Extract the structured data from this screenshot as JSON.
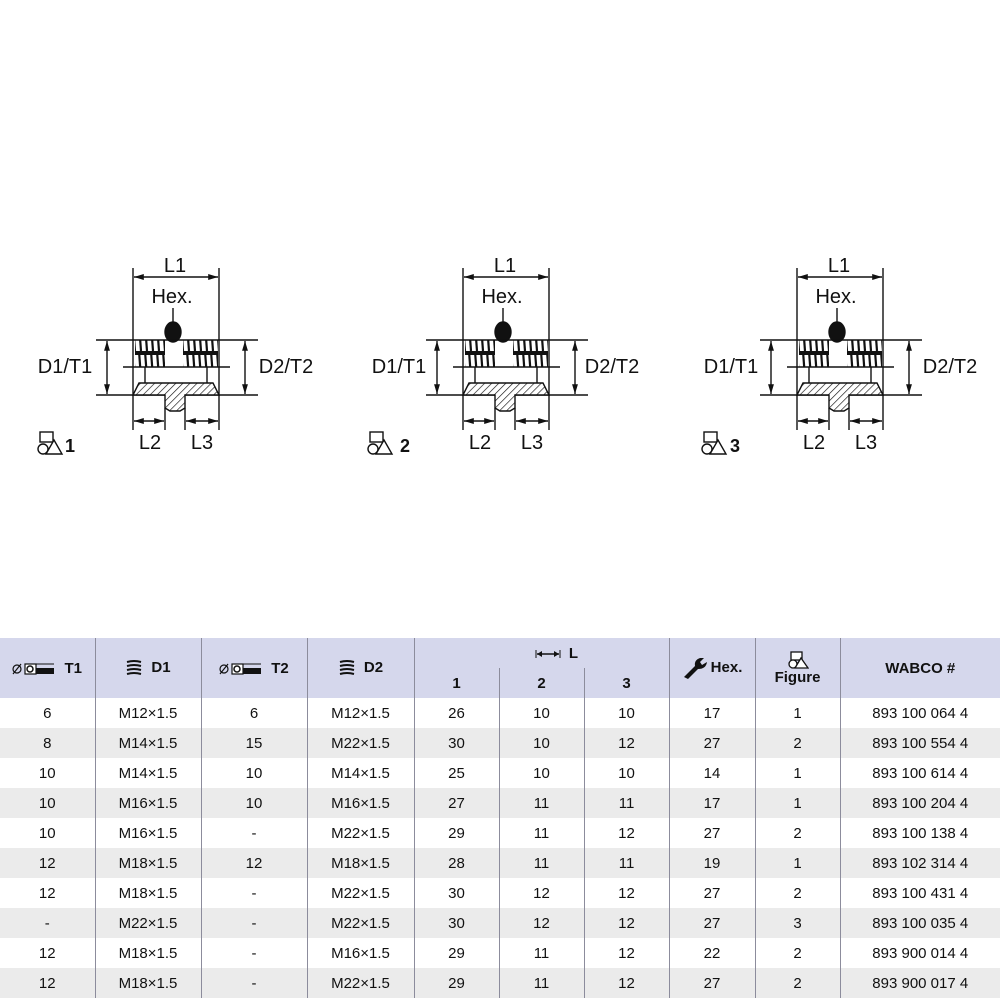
{
  "figures": [
    {
      "number": "1",
      "l1": "L1",
      "hex": "Hex.",
      "d1t1": "D1/T1",
      "d2t2": "D2/T2",
      "l2": "L2",
      "l3": "L3"
    },
    {
      "number": "2",
      "l1": "L1",
      "hex": "Hex.",
      "d1t1": "D1/T1",
      "d2t2": "D2/T2",
      "l2": "L2",
      "l3": "L3"
    },
    {
      "number": "3",
      "l1": "L1",
      "hex": "Hex.",
      "d1t1": "D1/T1",
      "d2t2": "D2/T2",
      "l2": "L2",
      "l3": "L3"
    }
  ],
  "table": {
    "headers": {
      "t1": "T1",
      "d1": "D1",
      "t2": "T2",
      "d2": "D2",
      "l": "L",
      "l_sub": [
        "1",
        "2",
        "3"
      ],
      "hex": "Hex.",
      "figure": "Figure",
      "wabco": "WABCO #"
    },
    "icons": {
      "t": "tube-diameter-icon",
      "d": "thread-icon",
      "l": "length-arrow-icon",
      "hex": "wrench-icon",
      "figure": "figure-shapes-icon"
    },
    "header_bg": "#d5d7ec",
    "alt_row_bg": "#ebebeb",
    "rows": [
      [
        "6",
        "M12×1.5",
        "6",
        "M12×1.5",
        "26",
        "10",
        "10",
        "17",
        "1",
        "893 100 064 4"
      ],
      [
        "8",
        "M14×1.5",
        "15",
        "M22×1.5",
        "30",
        "10",
        "12",
        "27",
        "2",
        "893 100 554 4"
      ],
      [
        "10",
        "M14×1.5",
        "10",
        "M14×1.5",
        "25",
        "10",
        "10",
        "14",
        "1",
        "893 100 614 4"
      ],
      [
        "10",
        "M16×1.5",
        "10",
        "M16×1.5",
        "27",
        "11",
        "11",
        "17",
        "1",
        "893 100 204 4"
      ],
      [
        "10",
        "M16×1.5",
        "-",
        "M22×1.5",
        "29",
        "11",
        "12",
        "27",
        "2",
        "893 100 138 4"
      ],
      [
        "12",
        "M18×1.5",
        "12",
        "M18×1.5",
        "28",
        "11",
        "11",
        "19",
        "1",
        "893 102 314 4"
      ],
      [
        "12",
        "M18×1.5",
        "-",
        "M22×1.5",
        "30",
        "12",
        "12",
        "27",
        "2",
        "893 100 431 4"
      ],
      [
        "-",
        "M22×1.5",
        "-",
        "M22×1.5",
        "30",
        "12",
        "12",
        "27",
        "3",
        "893 100 035 4"
      ],
      [
        "12",
        "M18×1.5",
        "-",
        "M16×1.5",
        "29",
        "11",
        "12",
        "22",
        "2",
        "893 900 014 4"
      ],
      [
        "12",
        "M18×1.5",
        "-",
        "M22×1.5",
        "29",
        "11",
        "12",
        "27",
        "2",
        "893 900 017 4"
      ]
    ]
  }
}
